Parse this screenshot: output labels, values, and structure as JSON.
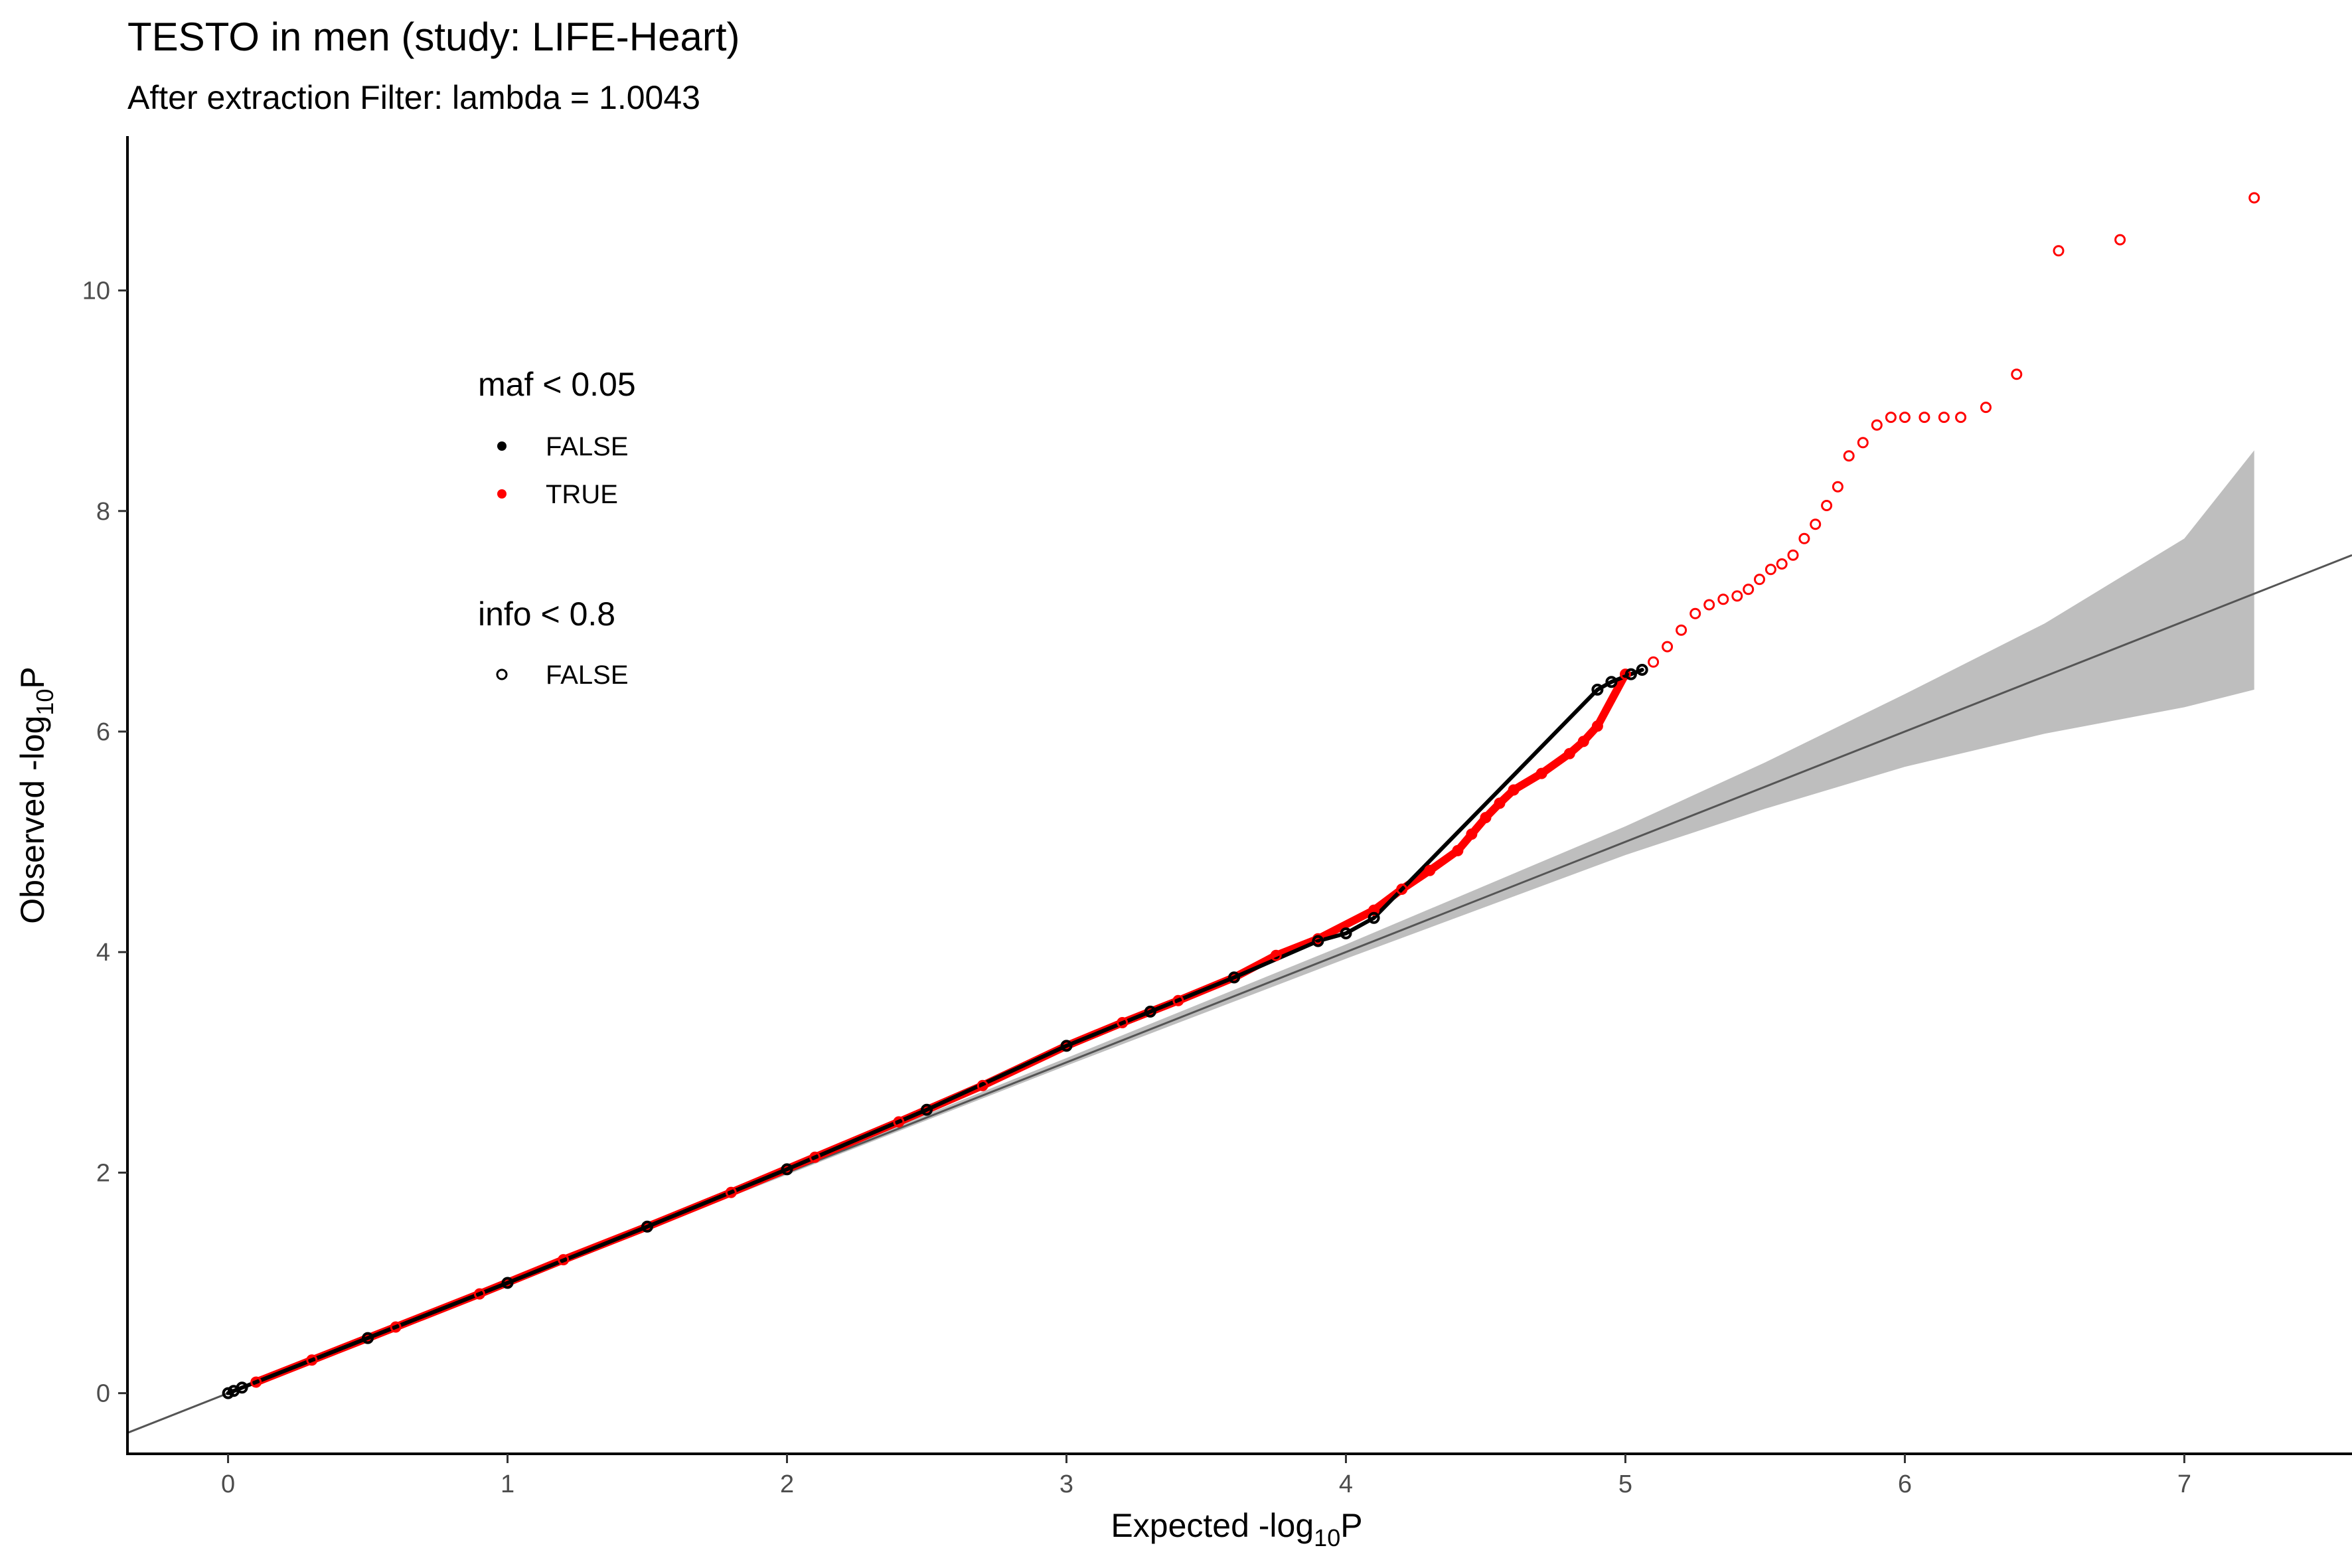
{
  "chart_data": {
    "type": "scatter",
    "title": "TESTO in men (study: LIFE-Heart)",
    "subtitle": "After extraction Filter: lambda =  1.0043",
    "xlabel": {
      "main": "Expected -log",
      "sub": "10",
      "suffix": "P"
    },
    "ylabel": {
      "main": "Observed -log",
      "sub": "10",
      "suffix": "P"
    },
    "xlim": [
      -0.36,
      7.6
    ],
    "ylim": [
      -0.55,
      11.4
    ],
    "xticks": [
      0,
      1,
      2,
      3,
      4,
      5,
      6,
      7
    ],
    "yticks": [
      0,
      2,
      4,
      6,
      8,
      10
    ],
    "grid": false,
    "colors": {
      "maf_false": "#000000",
      "maf_true": "#ff0000",
      "band": "#bebebe",
      "diagonal": "#555555",
      "axis": "#000000"
    },
    "legend": {
      "placement": "top-left inside",
      "groups": [
        {
          "title": "maf < 0.05",
          "entries": [
            {
              "label": "FALSE",
              "shape": "filled-dot",
              "color": "#000000"
            },
            {
              "label": "TRUE",
              "shape": "filled-dot",
              "color": "#ff0000"
            }
          ]
        },
        {
          "title": "info < 0.8",
          "entries": [
            {
              "label": "FALSE",
              "shape": "open-circle",
              "color": "#000000"
            }
          ]
        }
      ]
    },
    "reference_line": {
      "slope": 1,
      "intercept": 0
    },
    "confidence_band": {
      "x": [
        0,
        1,
        2,
        3,
        4,
        5,
        5.5,
        6,
        6.5,
        7,
        7.25
      ],
      "lower": [
        0,
        0.99,
        1.98,
        2.97,
        3.94,
        4.88,
        5.3,
        5.68,
        5.98,
        6.22,
        6.38
      ],
      "upper": [
        0,
        1.01,
        2.02,
        3.04,
        4.07,
        5.14,
        5.72,
        6.34,
        6.98,
        7.75,
        8.55
      ]
    },
    "series": [
      {
        "name": "FALSE",
        "color": "#000000",
        "shape": "filled-dot",
        "x": [
          0,
          0.02,
          0.05,
          0.5,
          1.0,
          1.5,
          2.0,
          2.5,
          3.0,
          3.3,
          3.6,
          3.9,
          4.0,
          4.1,
          4.9,
          4.95,
          5.02,
          5.06
        ],
        "y": [
          0,
          0.02,
          0.05,
          0.5,
          1.0,
          1.51,
          2.03,
          2.57,
          3.15,
          3.46,
          3.77,
          4.1,
          4.17,
          4.31,
          6.38,
          6.45,
          6.52,
          6.56
        ]
      },
      {
        "name": "TRUE",
        "color": "#ff0000",
        "shape": "open-circle",
        "x": [
          0.1,
          0.3,
          0.6,
          0.9,
          1.2,
          1.5,
          1.8,
          2.1,
          2.4,
          2.7,
          3.0,
          3.2,
          3.4,
          3.6,
          3.75,
          3.9,
          4.1,
          4.2,
          4.3,
          4.4,
          4.45,
          4.5,
          4.55,
          4.6,
          4.7,
          4.8,
          4.85,
          4.9,
          5.0,
          5.1,
          5.15,
          5.2,
          5.25,
          5.3,
          5.35,
          5.4,
          5.44,
          5.48,
          5.52,
          5.56,
          5.6,
          5.64,
          5.68,
          5.72,
          5.76,
          5.8,
          5.85,
          5.9,
          5.95,
          6.0,
          6.07,
          6.14,
          6.2,
          6.29,
          6.4,
          6.55,
          6.77,
          7.25
        ],
        "y": [
          0.1,
          0.3,
          0.6,
          0.9,
          1.21,
          1.51,
          1.82,
          2.14,
          2.46,
          2.79,
          3.15,
          3.36,
          3.56,
          3.77,
          3.97,
          4.12,
          4.38,
          4.57,
          4.74,
          4.92,
          5.07,
          5.22,
          5.35,
          5.47,
          5.62,
          5.8,
          5.91,
          6.05,
          6.52,
          6.63,
          6.77,
          6.92,
          7.07,
          7.15,
          7.2,
          7.23,
          7.29,
          7.38,
          7.47,
          7.52,
          7.6,
          7.75,
          7.88,
          8.05,
          8.22,
          8.5,
          8.62,
          8.78,
          8.85,
          8.85,
          8.85,
          8.85,
          8.85,
          8.94,
          9.24,
          10.36,
          10.46,
          10.84
        ]
      }
    ]
  }
}
